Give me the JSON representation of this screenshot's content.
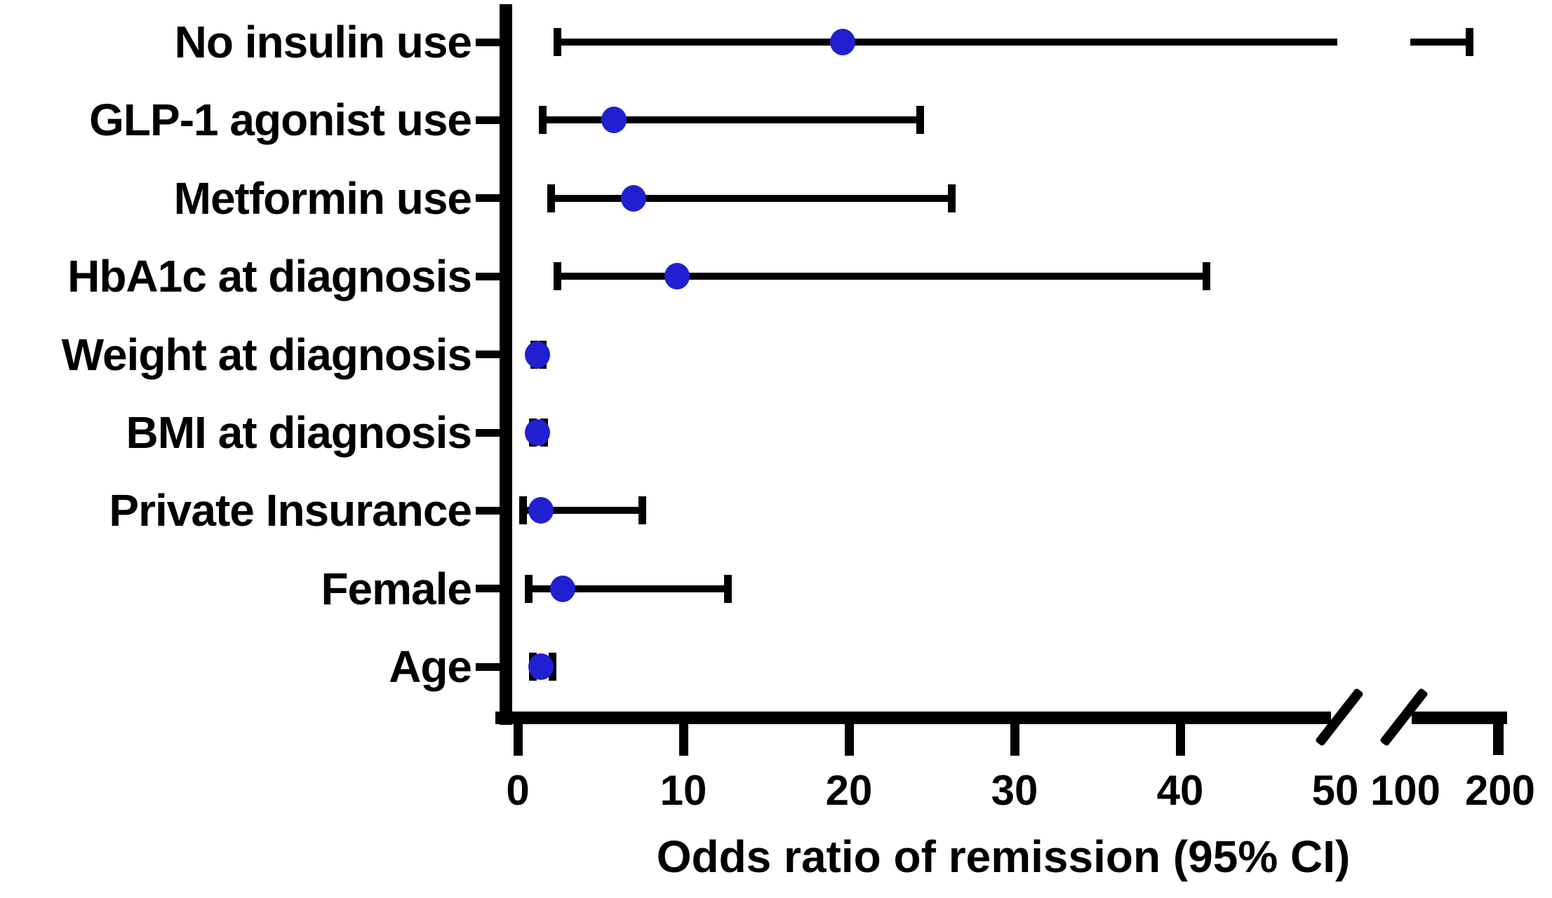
{
  "figure": {
    "background": "#ffffff",
    "text_color": "#000000"
  },
  "chart_data": {
    "type": "scatter",
    "subtype": "forest-plot-odds-ratios-with-95ci-error-bars",
    "orientation": "horizontal",
    "title": "",
    "xlabel": "Odds ratio of remission (95% CI)",
    "ylabel": "",
    "grid": false,
    "legend": null,
    "marker_color": "#2020d0",
    "error_bar_color": "#000000",
    "categories": [
      "No insulin use",
      "GLP-1 agonist use",
      "Metformin use",
      "HbA1c at diagnosis",
      "Weight at diagnosis",
      "BMI at diagnosis",
      "Private Insurance",
      "Female",
      "Age"
    ],
    "series": [
      {
        "name": "Odds ratio of remission (95% CI)",
        "points": [
          {
            "category": "No insulin use",
            "or": 19.6,
            "ci_low": 2.4,
            "ci_high": 160.0
          },
          {
            "category": "GLP-1 agonist use",
            "or": 5.8,
            "ci_low": 1.5,
            "ci_high": 24.3
          },
          {
            "category": "Metformin use",
            "or": 7.0,
            "ci_low": 2.0,
            "ci_high": 26.2
          },
          {
            "category": "HbA1c at diagnosis",
            "or": 9.6,
            "ci_low": 2.4,
            "ci_high": 41.6
          },
          {
            "category": "Weight at diagnosis",
            "or": 1.2,
            "ci_low": 1.0,
            "ci_high": 1.5
          },
          {
            "category": "BMI at diagnosis",
            "or": 1.2,
            "ci_low": 0.9,
            "ci_high": 1.6
          },
          {
            "category": "Private Insurance",
            "or": 1.4,
            "ci_low": 0.3,
            "ci_high": 7.5
          },
          {
            "category": "Female",
            "or": 2.7,
            "ci_low": 0.65,
            "ci_high": 12.7
          },
          {
            "category": "Age",
            "or": 1.4,
            "ci_low": 0.9,
            "ci_high": 2.1
          }
        ]
      }
    ],
    "x_axis": {
      "tick_labels": [
        "0",
        "10",
        "20",
        "30",
        "40",
        "50",
        "100",
        "200"
      ],
      "linear_tick_values": [
        0,
        10,
        20,
        30,
        40
      ],
      "post_break_tick_values": [
        100,
        200
      ],
      "axis_break": true,
      "break_between": [
        50,
        100
      ],
      "xlim_linear": [
        0,
        50
      ],
      "xlim_after_break": [
        100,
        200
      ]
    }
  }
}
